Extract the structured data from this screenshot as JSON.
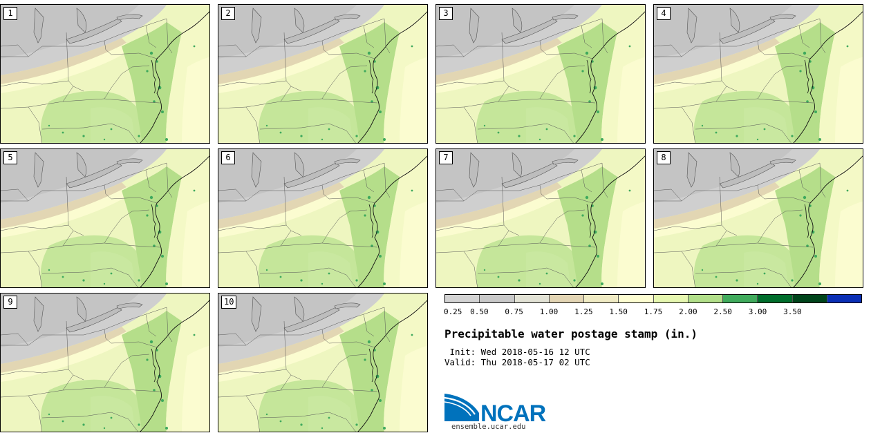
{
  "panels": [
    {
      "label": "1"
    },
    {
      "label": "2"
    },
    {
      "label": "3"
    },
    {
      "label": "4"
    },
    {
      "label": "5"
    },
    {
      "label": "6"
    },
    {
      "label": "7"
    },
    {
      "label": "8"
    },
    {
      "label": "9"
    },
    {
      "label": "10"
    }
  ],
  "legend": {
    "colors": [
      "#d3d3d3",
      "#c8c8c8",
      "#e2e2d5",
      "#e3d5b4",
      "#f0ebc4",
      "#fefed2",
      "#e6f7b0",
      "#b2df8a",
      "#41ab5d",
      "#006d2c",
      "#00441b",
      "#0a2fb5"
    ],
    "ticks": [
      "0.25",
      "0.50",
      "0.75",
      "1.00",
      "1.25",
      "1.50",
      "1.75",
      "2.00",
      "2.50",
      "3.00",
      "3.50"
    ]
  },
  "title": "Precipitable water postage stamp (in.)",
  "init_line": " Init: Wed 2018-05-16 12 UTC",
  "valid_line": "Valid: Thu 2018-05-17 02 UTC",
  "logo": {
    "text": "NCAR",
    "url": "ensemble.ucar.edu",
    "blue": "#0072bc"
  },
  "map_colors": {
    "gray_dark": "#c9c9c9",
    "gray_light": "#dedfd2",
    "tan": "#e1d6b3",
    "cream": "#fbfcd0",
    "yellowgreen": "#e2f6ac",
    "green": "#b8e08f",
    "darkgreen": "#3ea95d"
  }
}
